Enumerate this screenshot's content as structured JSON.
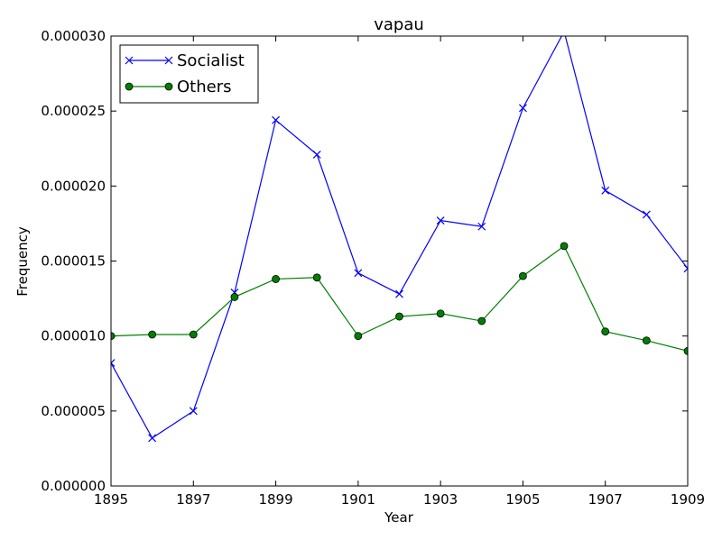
{
  "chart_data": {
    "type": "line",
    "title": "vapau",
    "xlabel": "Year",
    "ylabel": "Frequency",
    "x": [
      1895,
      1896,
      1897,
      1898,
      1899,
      1900,
      1901,
      1902,
      1903,
      1904,
      1905,
      1906,
      1907,
      1908,
      1909
    ],
    "xlim": [
      1895,
      1909
    ],
    "ylim": [
      0,
      3e-05
    ],
    "x_ticks": [
      "1895",
      "1897",
      "1899",
      "1901",
      "1903",
      "1905",
      "1907",
      "1909"
    ],
    "x_tick_values": [
      1895,
      1897,
      1899,
      1901,
      1903,
      1905,
      1907,
      1909
    ],
    "y_ticks": [
      "0.000000",
      "0.000005",
      "0.000010",
      "0.000015",
      "0.000020",
      "0.000025",
      "0.000030"
    ],
    "y_tick_values": [
      0,
      5e-06,
      1e-05,
      1.5e-05,
      2e-05,
      2.5e-05,
      3e-05
    ],
    "grid": false,
    "legend_position": "top-left",
    "series": [
      {
        "name": "Socialist",
        "color": "#0000ff",
        "marker": "x",
        "values": [
          8.2e-06,
          3.2e-06,
          5e-06,
          1.29e-05,
          2.44e-05,
          2.21e-05,
          1.42e-05,
          1.28e-05,
          1.77e-05,
          1.73e-05,
          2.52e-05,
          3.03e-05,
          1.97e-05,
          1.81e-05,
          1.45e-05
        ]
      },
      {
        "name": "Others",
        "color": "#008000",
        "marker": "circle",
        "values": [
          1e-05,
          1.01e-05,
          1.01e-05,
          1.26e-05,
          1.38e-05,
          1.39e-05,
          1e-05,
          1.13e-05,
          1.15e-05,
          1.1e-05,
          1.4e-05,
          1.6e-05,
          1.03e-05,
          9.7e-06,
          9e-06
        ]
      }
    ]
  }
}
